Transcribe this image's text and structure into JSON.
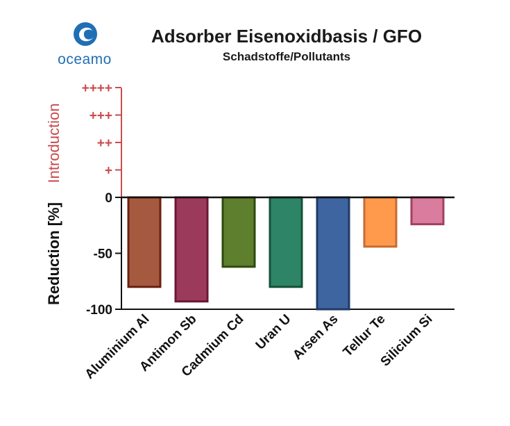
{
  "brand": {
    "name": "oceamo"
  },
  "chart_data": {
    "type": "bar",
    "title": "Adsorber Eisenoxidbasis / GFO",
    "subtitle": "Schadstoffe/Pollutants",
    "ylabel": "Reduction [%]",
    "ylabel_upper": "Introduction",
    "ylim": [
      -100,
      0
    ],
    "yticks": [
      0,
      -50,
      -100
    ],
    "ytick_labels": [
      "0",
      "-50",
      "-100"
    ],
    "upper_ticks": [
      "+",
      "++",
      "+++",
      "++++"
    ],
    "categories": [
      "Aluminium Al",
      "Antimon Sb",
      "Cadmium Cd",
      "Uran U",
      "Arsen As",
      "Tellur Te",
      "Silicium Si"
    ],
    "values": [
      -80,
      -93,
      -62,
      -80,
      -100,
      -44,
      -24
    ],
    "colors": [
      "#a55a3f",
      "#9c3a5b",
      "#5d7f2e",
      "#2e8466",
      "#3f65a0",
      "#ff9a4d",
      "#d97c9e"
    ],
    "edge_colors": [
      "#6b2010",
      "#6a1830",
      "#2f4a10",
      "#145238",
      "#1f3a66",
      "#c96a30",
      "#a0405e"
    ],
    "grid": false,
    "legend": "none"
  }
}
